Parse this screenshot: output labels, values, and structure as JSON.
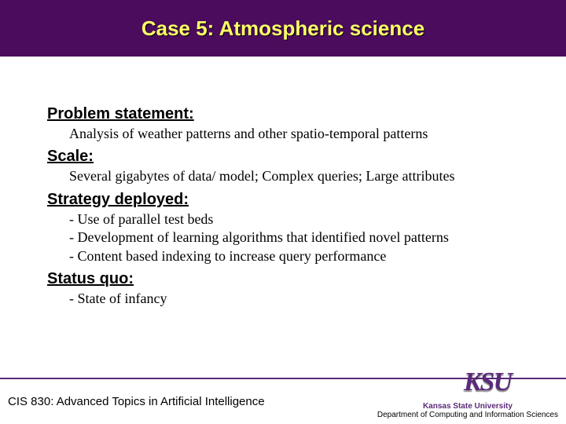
{
  "colors": {
    "title_bg": "#4b0c5e",
    "title_text": "#ffff66",
    "line": "#5b2a7a",
    "logo": "#5b2a7a",
    "uni_name": "#5b2a7a"
  },
  "title": "Case 5: Atmospheric science",
  "sections": [
    {
      "heading": "Problem statement:",
      "body": "Analysis of weather patterns and other spatio-temporal patterns"
    },
    {
      "heading": "Scale:",
      "body": "Several gigabytes of data/ model; Complex queries; Large attributes"
    },
    {
      "heading": "Strategy deployed:",
      "body": "- Use of parallel test beds\n- Development of learning algorithms that identified novel patterns\n- Content based indexing to increase query performance"
    },
    {
      "heading": "Status quo:",
      "body": "- State of infancy"
    }
  ],
  "footer": {
    "left": "CIS 830: Advanced Topics in Artificial Intelligence",
    "logo_text": "KSU",
    "university": "Kansas State University",
    "department": "Department of Computing and Information Sciences"
  }
}
